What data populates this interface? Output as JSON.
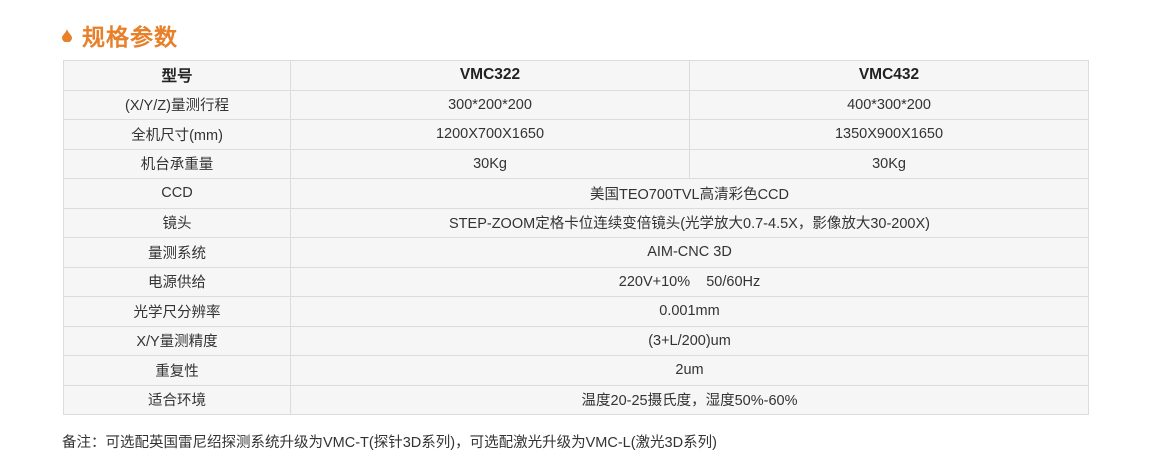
{
  "title": "规格参数",
  "icon": "drop-icon",
  "accent": "#e8802a",
  "table": {
    "header": [
      "型号",
      "VMC322",
      "VMC432"
    ],
    "rows": [
      {
        "label": "(X/Y/Z)量测行程",
        "values": [
          "300*200*200",
          "400*300*200"
        ]
      },
      {
        "label": "全机尺寸(mm)",
        "values": [
          "1200X700X1650",
          "1350X900X1650"
        ]
      },
      {
        "label": "机台承重量",
        "values": [
          "30Kg",
          "30Kg"
        ]
      },
      {
        "label": "CCD",
        "values": [
          "美国TEO700TVL高清彩色CCD"
        ]
      },
      {
        "label": "镜头",
        "values": [
          "STEP-ZOOM定格卡位连续变倍镜头(光学放大0.7-4.5X，影像放大30-200X)"
        ]
      },
      {
        "label": "量测系统",
        "values": [
          "AIM-CNC 3D"
        ]
      },
      {
        "label": "电源供给",
        "values": [
          "220V+10%    50/60Hz"
        ]
      },
      {
        "label": "光学尺分辨率",
        "values": [
          "0.001mm"
        ]
      },
      {
        "label": "X/Y量测精度",
        "values": [
          "(3+L/200)um"
        ]
      },
      {
        "label": "重复性",
        "values": [
          "2um"
        ]
      },
      {
        "label": "适合环境",
        "values": [
          "温度20-25摄氏度，湿度50%-60%"
        ]
      }
    ]
  },
  "note": "备注：可选配英国雷尼绍探测系统升级为VMC-T(探针3D系列)，可选配激光升级为VMC-L(激光3D系列)"
}
